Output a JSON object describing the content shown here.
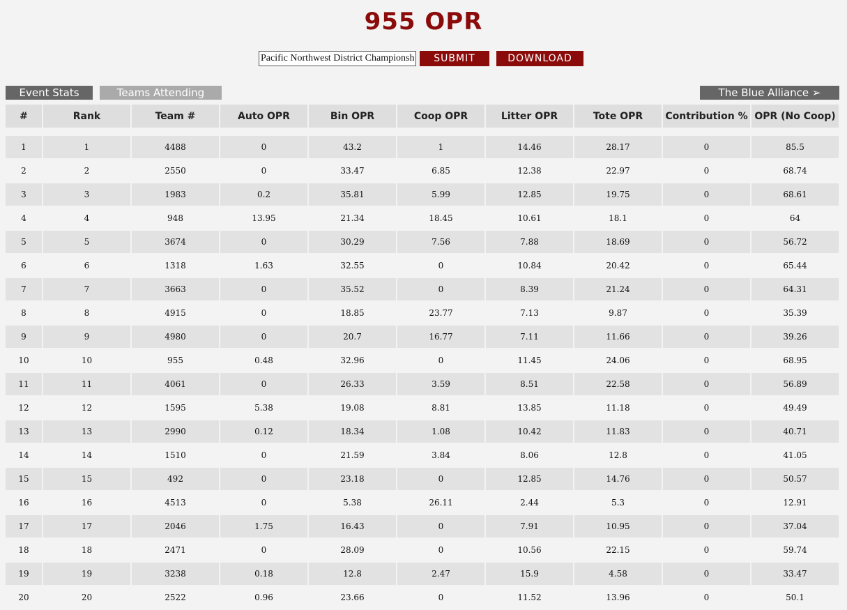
{
  "header": {
    "title": "955 OPR"
  },
  "controls": {
    "event_value": "Pacific Northwest District Championship",
    "submit_label": "SUBMIT",
    "download_label": "DOWNLOAD"
  },
  "tabs": {
    "event_stats": "Event Stats",
    "teams_attending": "Teams Attending",
    "blue_alliance": "The Blue Alliance ➢"
  },
  "table": {
    "columns": [
      "#",
      "Rank",
      "Team #",
      "Auto OPR",
      "Bin OPR",
      "Coop OPR",
      "Litter OPR",
      "Tote OPR",
      "Contribution %",
      "OPR (No Coop)"
    ],
    "rows": [
      [
        "1",
        "1",
        "4488",
        "0",
        "43.2",
        "1",
        "14.46",
        "28.17",
        "0",
        "85.5"
      ],
      [
        "2",
        "2",
        "2550",
        "0",
        "33.47",
        "6.85",
        "12.38",
        "22.97",
        "0",
        "68.74"
      ],
      [
        "3",
        "3",
        "1983",
        "0.2",
        "35.81",
        "5.99",
        "12.85",
        "19.75",
        "0",
        "68.61"
      ],
      [
        "4",
        "4",
        "948",
        "13.95",
        "21.34",
        "18.45",
        "10.61",
        "18.1",
        "0",
        "64"
      ],
      [
        "5",
        "5",
        "3674",
        "0",
        "30.29",
        "7.56",
        "7.88",
        "18.69",
        "0",
        "56.72"
      ],
      [
        "6",
        "6",
        "1318",
        "1.63",
        "32.55",
        "0",
        "10.84",
        "20.42",
        "0",
        "65.44"
      ],
      [
        "7",
        "7",
        "3663",
        "0",
        "35.52",
        "0",
        "8.39",
        "21.24",
        "0",
        "64.31"
      ],
      [
        "8",
        "8",
        "4915",
        "0",
        "18.85",
        "23.77",
        "7.13",
        "9.87",
        "0",
        "35.39"
      ],
      [
        "9",
        "9",
        "4980",
        "0",
        "20.7",
        "16.77",
        "7.11",
        "11.66",
        "0",
        "39.26"
      ],
      [
        "10",
        "10",
        "955",
        "0.48",
        "32.96",
        "0",
        "11.45",
        "24.06",
        "0",
        "68.95"
      ],
      [
        "11",
        "11",
        "4061",
        "0",
        "26.33",
        "3.59",
        "8.51",
        "22.58",
        "0",
        "56.89"
      ],
      [
        "12",
        "12",
        "1595",
        "5.38",
        "19.08",
        "8.81",
        "13.85",
        "11.18",
        "0",
        "49.49"
      ],
      [
        "13",
        "13",
        "2990",
        "0.12",
        "18.34",
        "1.08",
        "10.42",
        "11.83",
        "0",
        "40.71"
      ],
      [
        "14",
        "14",
        "1510",
        "0",
        "21.59",
        "3.84",
        "8.06",
        "12.8",
        "0",
        "41.05"
      ],
      [
        "15",
        "15",
        "492",
        "0",
        "23.18",
        "0",
        "12.85",
        "14.76",
        "0",
        "50.57"
      ],
      [
        "16",
        "16",
        "4513",
        "0",
        "5.38",
        "26.11",
        "2.44",
        "5.3",
        "0",
        "12.91"
      ],
      [
        "17",
        "17",
        "2046",
        "1.75",
        "16.43",
        "0",
        "7.91",
        "10.95",
        "0",
        "37.04"
      ],
      [
        "18",
        "18",
        "2471",
        "0",
        "28.09",
        "0",
        "10.56",
        "22.15",
        "0",
        "59.74"
      ],
      [
        "19",
        "19",
        "3238",
        "0.18",
        "12.8",
        "2.47",
        "15.9",
        "4.58",
        "0",
        "33.47"
      ],
      [
        "20",
        "20",
        "2522",
        "0.96",
        "23.66",
        "0",
        "11.52",
        "13.96",
        "0",
        "50.1"
      ]
    ]
  },
  "colors": {
    "brand_red": "#8b0b0b",
    "tab_dark": "#666666",
    "tab_light": "#aaaaaa",
    "row_stripe": "#e2e2e2",
    "header_bg": "#dedede"
  }
}
